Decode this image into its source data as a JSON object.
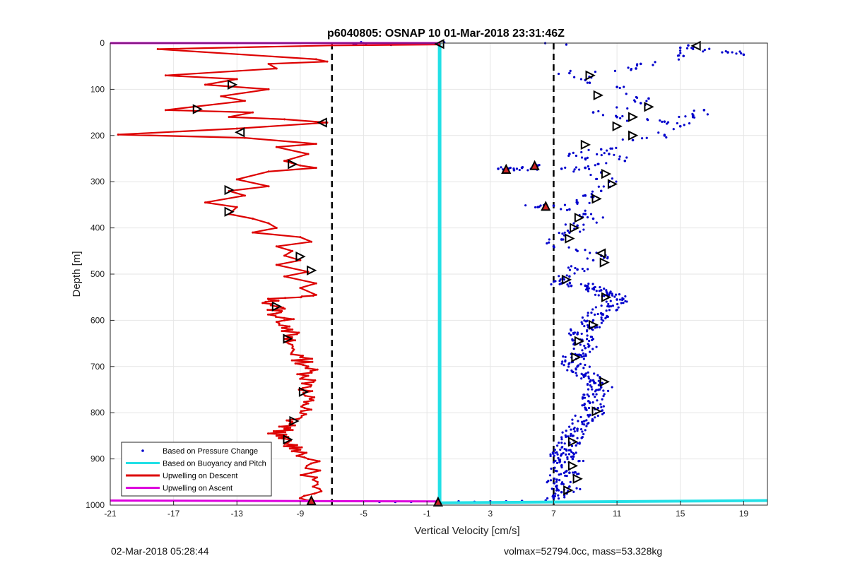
{
  "chart_data": {
    "type": "scatter",
    "title": "p6040805: OSNAP 10 01-Mar-2018 23:31:46Z",
    "xlabel": "Vertical Velocity [cm/s]",
    "ylabel": "Depth [m]",
    "xlim": [
      -21,
      20.5
    ],
    "ylim": [
      0,
      1000
    ],
    "y_reversed": true,
    "grid": true,
    "x_ticks": [
      -21,
      -17,
      -13,
      -9,
      -5,
      -1,
      3,
      7,
      11,
      15,
      19
    ],
    "y_ticks": [
      0,
      100,
      200,
      300,
      400,
      500,
      600,
      700,
      800,
      900,
      1000
    ],
    "legend": {
      "position": "bottom-left",
      "entries": [
        {
          "label": "Based on Pressure Change",
          "color": "#0000cc",
          "style": "dot"
        },
        {
          "label": "Based on Buoyancy and Pitch",
          "color": "#22e0e6",
          "style": "line"
        },
        {
          "label": "Upwelling on Descent",
          "color": "#dd0000",
          "style": "line"
        },
        {
          "label": "Upwelling on Ascent",
          "color": "#dd00dd",
          "style": "line"
        }
      ]
    },
    "reference_lines_x": [
      -7,
      7
    ],
    "series": [
      {
        "name": "Based on Pressure Change",
        "kind": "scatter",
        "color": "#0000cc",
        "points": [
          [
            -5.5,
            2
          ],
          [
            -5,
            0
          ],
          [
            15.5,
            5
          ],
          [
            18,
            20
          ],
          [
            19,
            25
          ],
          [
            15,
            10
          ],
          [
            15.2,
            28
          ],
          [
            12.5,
            45
          ],
          [
            12.2,
            55
          ],
          [
            8,
            65
          ],
          [
            9,
            80
          ],
          [
            11,
            95
          ],
          [
            13,
            120
          ],
          [
            12.5,
            130
          ],
          [
            9.5,
            150
          ],
          [
            11,
            160
          ],
          [
            14,
            170
          ],
          [
            15,
            180
          ],
          [
            15.8,
            160
          ],
          [
            16.5,
            145
          ],
          [
            14,
            200
          ],
          [
            12,
            210
          ],
          [
            10,
            230
          ],
          [
            8,
            240
          ],
          [
            9,
            250
          ],
          [
            10.5,
            240
          ],
          [
            11.5,
            255
          ],
          [
            9,
            270
          ],
          [
            6,
            265
          ],
          [
            5,
            270
          ],
          [
            4.5,
            275
          ],
          [
            3.5,
            272
          ],
          [
            7.5,
            272
          ],
          [
            10,
            280
          ],
          [
            10.5,
            300
          ],
          [
            10,
            320
          ],
          [
            9,
            330
          ],
          [
            8.5,
            345
          ],
          [
            7,
            352
          ],
          [
            6,
            355
          ],
          [
            8,
            360
          ],
          [
            9,
            370
          ],
          [
            9.5,
            380
          ],
          [
            8.5,
            395
          ],
          [
            8,
            410
          ],
          [
            7.5,
            425
          ],
          [
            7,
            440
          ],
          [
            8.5,
            450
          ],
          [
            10,
            460
          ],
          [
            9.5,
            470
          ],
          [
            8.5,
            490
          ],
          [
            8,
            505
          ],
          [
            7.5,
            520
          ],
          [
            9,
            525
          ],
          [
            10,
            535
          ],
          [
            10.5,
            545
          ],
          [
            11,
            555
          ],
          [
            10.5,
            570
          ],
          [
            10,
            585
          ],
          [
            9.5,
            600
          ],
          [
            9.2,
            615
          ],
          [
            8.5,
            630
          ],
          [
            8.8,
            645
          ],
          [
            9,
            660
          ],
          [
            8.5,
            675
          ],
          [
            8.2,
            690
          ],
          [
            8.5,
            700
          ],
          [
            9,
            720
          ],
          [
            9.5,
            730
          ],
          [
            10,
            745
          ],
          [
            9.5,
            760
          ],
          [
            9.2,
            775
          ],
          [
            9.8,
            790
          ],
          [
            9.3,
            805
          ],
          [
            8.8,
            820
          ],
          [
            8.5,
            835
          ],
          [
            8.2,
            850
          ],
          [
            8,
            865
          ],
          [
            7.8,
            880
          ],
          [
            7.5,
            890
          ],
          [
            8.2,
            900
          ],
          [
            7.5,
            915
          ],
          [
            8,
            930
          ],
          [
            7.2,
            945
          ],
          [
            8,
            960
          ],
          [
            7.5,
            972
          ],
          [
            7,
            985
          ],
          [
            6.5,
            990
          ],
          [
            5,
            991
          ],
          [
            4,
            992
          ],
          [
            3,
            992
          ],
          [
            2,
            993
          ],
          [
            1,
            992
          ],
          [
            -2,
            993
          ],
          [
            -3,
            993
          ],
          [
            -4,
            993
          ],
          [
            -5,
            992
          ]
        ],
        "count_note": "dense cloud"
      },
      {
        "name": "Based on Buoyancy and Pitch",
        "kind": "line",
        "color": "#22e0e6",
        "points": [
          [
            -0.2,
            0
          ],
          [
            -0.2,
            995
          ],
          [
            20.5,
            990
          ]
        ]
      },
      {
        "name": "Upwelling on Descent",
        "kind": "line",
        "color": "#dd0000",
        "points": [
          [
            -0.2,
            3
          ],
          [
            -7,
            5
          ],
          [
            -18,
            13
          ],
          [
            -8,
            35
          ],
          [
            -7.3,
            40
          ],
          [
            -11,
            45
          ],
          [
            -10.5,
            55
          ],
          [
            -17.5,
            70
          ],
          [
            -13,
            78
          ],
          [
            -15,
            90
          ],
          [
            -11,
            100
          ],
          [
            -14,
            115
          ],
          [
            -12.5,
            125
          ],
          [
            -17.5,
            145
          ],
          [
            -12,
            150
          ],
          [
            -13.5,
            160
          ],
          [
            -10,
            165
          ],
          [
            -7.3,
            172
          ],
          [
            -13,
            185
          ],
          [
            -20.5,
            198
          ],
          [
            -12.5,
            205
          ],
          [
            -8,
            218
          ],
          [
            -10.5,
            225
          ],
          [
            -8.5,
            240
          ],
          [
            -10,
            255
          ],
          [
            -9,
            265
          ],
          [
            -8,
            270
          ],
          [
            -11,
            278
          ],
          [
            -13,
            295
          ],
          [
            -11,
            310
          ],
          [
            -13.5,
            320
          ],
          [
            -12.5,
            330
          ],
          [
            -15,
            345
          ],
          [
            -13,
            355
          ],
          [
            -13.5,
            370
          ],
          [
            -12,
            380
          ],
          [
            -11,
            390
          ],
          [
            -10.5,
            400
          ],
          [
            -12,
            410
          ],
          [
            -9,
            420
          ],
          [
            -8.3,
            430
          ],
          [
            -10.5,
            440
          ],
          [
            -9.5,
            450
          ],
          [
            -10,
            460
          ],
          [
            -9,
            470
          ],
          [
            -10.5,
            480
          ],
          [
            -8.5,
            495
          ],
          [
            -10,
            505
          ],
          [
            -8,
            520
          ],
          [
            -9,
            530
          ],
          [
            -8,
            545
          ],
          [
            -11,
            555
          ],
          [
            -10.5,
            570
          ],
          [
            -10.5,
            585
          ],
          [
            -10,
            600
          ],
          [
            -9.5,
            620
          ],
          [
            -10,
            640
          ],
          [
            -9.5,
            660
          ],
          [
            -9,
            680
          ],
          [
            -8.5,
            700
          ],
          [
            -8.5,
            720
          ],
          [
            -8.3,
            740
          ],
          [
            -8.8,
            760
          ],
          [
            -8.5,
            780
          ],
          [
            -9,
            800
          ],
          [
            -9.5,
            820
          ],
          [
            -10,
            835
          ],
          [
            -10.5,
            850
          ],
          [
            -9.8,
            865
          ],
          [
            -9,
            880
          ],
          [
            -8.5,
            900
          ],
          [
            -8.3,
            930
          ],
          [
            -8.2,
            960
          ],
          [
            -8.5,
            990
          ]
        ]
      },
      {
        "name": "Upwelling on Ascent",
        "kind": "line",
        "color": "#dd00dd",
        "points": [
          [
            -21,
            0
          ],
          [
            -7,
            0
          ],
          [
            -0.2,
            0
          ],
          [
            -21,
            990
          ],
          [
            -0.2,
            992
          ]
        ]
      }
    ],
    "markers": [
      {
        "type": "left",
        "x": -0.2,
        "y": 2
      },
      {
        "type": "left",
        "x": 16,
        "y": 6
      },
      {
        "type": "right",
        "x": 9.3,
        "y": 70
      },
      {
        "type": "right",
        "x": 9.8,
        "y": 113
      },
      {
        "type": "right",
        "x": -13.3,
        "y": 90
      },
      {
        "type": "right",
        "x": 13,
        "y": 138
      },
      {
        "type": "right",
        "x": -15.5,
        "y": 143
      },
      {
        "type": "right",
        "x": 12,
        "y": 160
      },
      {
        "type": "left",
        "x": -7.6,
        "y": 172
      },
      {
        "type": "right",
        "x": 11,
        "y": 180
      },
      {
        "type": "left",
        "x": -12.8,
        "y": 193
      },
      {
        "type": "right",
        "x": 12,
        "y": 200
      },
      {
        "type": "right",
        "x": 9,
        "y": 220
      },
      {
        "type": "right",
        "x": -9.5,
        "y": 262
      },
      {
        "type": "up",
        "x": 5.8,
        "y": 265
      },
      {
        "type": "up",
        "x": 4,
        "y": 273
      },
      {
        "type": "right",
        "x": 10.3,
        "y": 283
      },
      {
        "type": "right",
        "x": 10.7,
        "y": 305
      },
      {
        "type": "right",
        "x": -13.5,
        "y": 318
      },
      {
        "type": "right",
        "x": 9.7,
        "y": 337
      },
      {
        "type": "up",
        "x": 6.5,
        "y": 353
      },
      {
        "type": "right",
        "x": -13.5,
        "y": 365
      },
      {
        "type": "right",
        "x": 8.6,
        "y": 378
      },
      {
        "type": "right",
        "x": 8.3,
        "y": 400
      },
      {
        "type": "right",
        "x": 8,
        "y": 423
      },
      {
        "type": "left",
        "x": 10,
        "y": 455
      },
      {
        "type": "right",
        "x": -9,
        "y": 462
      },
      {
        "type": "right",
        "x": 10.2,
        "y": 475
      },
      {
        "type": "right",
        "x": -8.3,
        "y": 492
      },
      {
        "type": "right",
        "x": 7.8,
        "y": 512
      },
      {
        "type": "right",
        "x": 10.3,
        "y": 550
      },
      {
        "type": "right",
        "x": -10.5,
        "y": 570
      },
      {
        "type": "right",
        "x": 9.5,
        "y": 610
      },
      {
        "type": "right",
        "x": -9.8,
        "y": 640
      },
      {
        "type": "right",
        "x": 8.6,
        "y": 645
      },
      {
        "type": "right",
        "x": 8.4,
        "y": 680
      },
      {
        "type": "right",
        "x": 10.2,
        "y": 733
      },
      {
        "type": "right",
        "x": -8.8,
        "y": 755
      },
      {
        "type": "right",
        "x": 9.7,
        "y": 797
      },
      {
        "type": "right",
        "x": -9.4,
        "y": 818
      },
      {
        "type": "right",
        "x": -9.8,
        "y": 858
      },
      {
        "type": "right",
        "x": 8.2,
        "y": 863
      },
      {
        "type": "right",
        "x": 8.2,
        "y": 915
      },
      {
        "type": "right",
        "x": 8.5,
        "y": 943
      },
      {
        "type": "right",
        "x": 7.9,
        "y": 968
      },
      {
        "type": "up",
        "x": -8.3,
        "y": 990
      },
      {
        "type": "up",
        "x": -0.3,
        "y": 993
      }
    ]
  },
  "footer": {
    "left": "02-Mar-2018 05:28:44",
    "right": "volmax=52794.0cc, mass=53.328kg"
  }
}
